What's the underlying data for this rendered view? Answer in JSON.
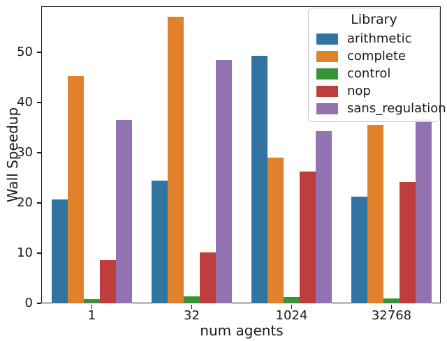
{
  "chart_data": {
    "type": "bar",
    "title": "",
    "xlabel": "num agents",
    "ylabel": "Wall Speedup",
    "categories": [
      "1",
      "32",
      "1024",
      "32768"
    ],
    "series": [
      {
        "name": "arithmetic",
        "color": "#3274a1",
        "values": [
          20.7,
          24.4,
          49.3,
          21.2
        ]
      },
      {
        "name": "complete",
        "color": "#e1812c",
        "values": [
          45.3,
          57.0,
          29.0,
          35.5
        ]
      },
      {
        "name": "control",
        "color": "#3a923a",
        "values": [
          0.8,
          1.4,
          1.2,
          1.0
        ]
      },
      {
        "name": "nop",
        "color": "#c03d3e",
        "values": [
          8.6,
          10.2,
          26.3,
          24.1
        ]
      },
      {
        "name": "sans_regulation",
        "color": "#9372b2",
        "values": [
          36.5,
          48.4,
          34.3,
          36.6
        ]
      }
    ],
    "yticks": [
      0,
      10,
      20,
      30,
      40,
      50
    ],
    "ylim": [
      0,
      59
    ],
    "grid": false,
    "legend": {
      "title": "Library",
      "position": "upper right"
    },
    "axis_color": "#1a1a1a"
  }
}
